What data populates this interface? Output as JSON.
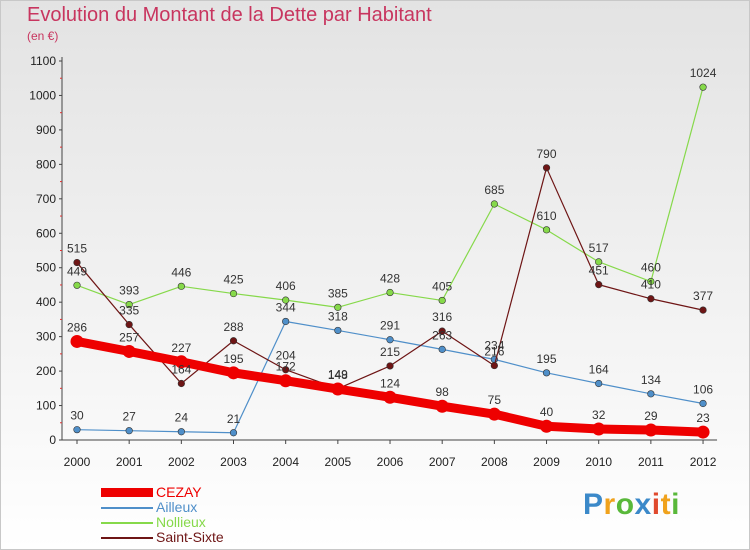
{
  "title": "Evolution du Montant de la Dette par Habitant",
  "subtitle": "(en €)",
  "logo": {
    "letters": [
      {
        "ch": "P",
        "color": "#3b89c9"
      },
      {
        "ch": "r",
        "color": "#f0a21c"
      },
      {
        "ch": "o",
        "color": "#59b83a"
      },
      {
        "ch": "x",
        "color": "#3b89c9"
      },
      {
        "ch": "i",
        "color": "#e04a2e"
      },
      {
        "ch": "t",
        "color": "#f0a21c"
      },
      {
        "ch": "i",
        "color": "#59b83a"
      }
    ]
  },
  "chart_data": {
    "type": "line",
    "x": [
      "2000",
      "2001",
      "2002",
      "2003",
      "2004",
      "2005",
      "2006",
      "2007",
      "2008",
      "2009",
      "2010",
      "2011",
      "2012"
    ],
    "ylim": [
      0,
      1100
    ],
    "yticks": [
      0,
      100,
      200,
      300,
      400,
      500,
      600,
      700,
      800,
      900,
      1000,
      1100
    ],
    "grid": false,
    "legend_position": "bottom-left",
    "series": [
      {
        "name": "CEZAY",
        "color": "#ee0000",
        "values": [
          286,
          257,
          227,
          195,
          172,
          148,
          124,
          98,
          75,
          40,
          32,
          29,
          23
        ]
      },
      {
        "name": "Ailleux",
        "color": "#4f8fc9",
        "values": [
          30,
          27,
          24,
          21,
          344,
          318,
          291,
          263,
          234,
          195,
          164,
          134,
          106
        ]
      },
      {
        "name": "Nollieux",
        "color": "#86d94a",
        "values": [
          449,
          393,
          446,
          425,
          406,
          385,
          428,
          405,
          685,
          610,
          517,
          460,
          1024
        ]
      },
      {
        "name": "Saint-Sixte",
        "color": "#6e1515",
        "values": [
          515,
          335,
          164,
          288,
          204,
          149,
          215,
          316,
          216,
          790,
          451,
          410,
          377
        ]
      }
    ]
  }
}
